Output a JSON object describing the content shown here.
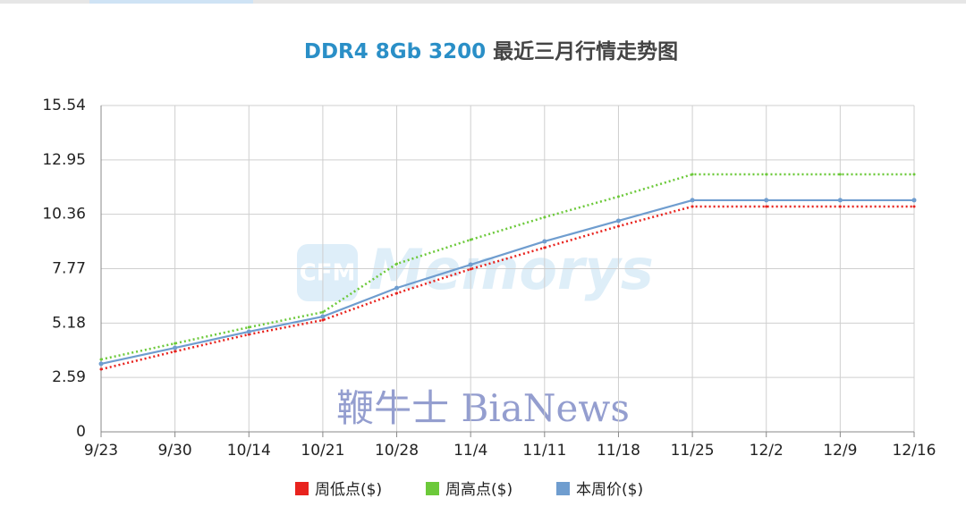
{
  "chart_data": {
    "type": "line",
    "title": "DDR4 8Gb 3200",
    "subtitle": "最近三月行情走势图",
    "watermarks": [
      "CFM",
      "Memorys",
      "鞭牛士 BiaNews"
    ],
    "categories": [
      "9/23",
      "9/30",
      "10/14",
      "10/21",
      "10/28",
      "11/4",
      "11/11",
      "11/18",
      "11/25",
      "12/2",
      "12/9",
      "12/16"
    ],
    "series": [
      {
        "name": "周低点($)",
        "color": "#e8231e",
        "style": "dotted",
        "values": [
          2.98,
          3.83,
          4.64,
          5.32,
          6.6,
          7.75,
          8.77,
          9.79,
          10.73,
          10.73,
          10.73,
          10.73
        ]
      },
      {
        "name": "周高点($)",
        "color": "#6cc93a",
        "style": "dotted",
        "values": [
          3.45,
          4.21,
          4.98,
          5.7,
          8.0,
          9.15,
          10.22,
          11.2,
          12.26,
          12.26,
          12.26,
          12.26
        ]
      },
      {
        "name": "本周价($)",
        "color": "#6f9dcf",
        "style": "solid",
        "values": [
          3.24,
          4.0,
          4.77,
          5.49,
          6.85,
          7.96,
          9.07,
          10.05,
          11.03,
          11.03,
          11.03,
          11.03
        ]
      }
    ],
    "ylim": [
      0,
      15.54
    ],
    "yticks": [
      0,
      2.59,
      5.18,
      7.77,
      10.36,
      12.95,
      15.54
    ],
    "grid": true,
    "legend": "bottom"
  }
}
